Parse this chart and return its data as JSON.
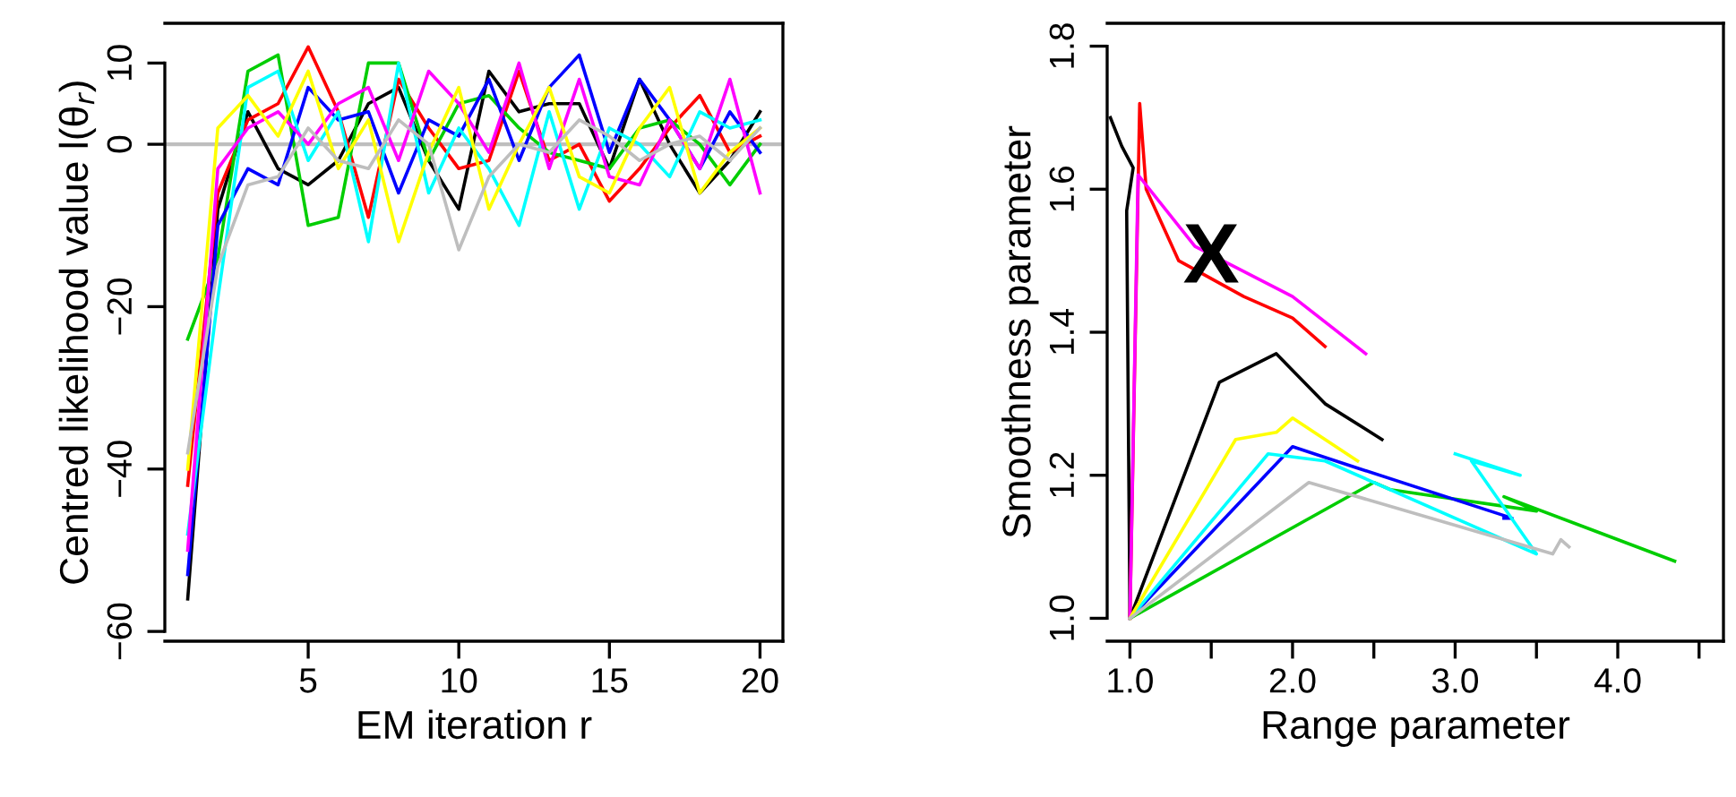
{
  "chart_data": [
    {
      "type": "line",
      "xlabel": "EM iteration r",
      "ylabel": "Centred likelihood value l(θ$_{r}$)",
      "x": [
        1,
        2,
        3,
        4,
        5,
        6,
        7,
        8,
        9,
        10,
        11,
        12,
        13,
        14,
        15,
        16,
        17,
        18,
        19,
        20
      ],
      "xlim": [
        0.24,
        20.76
      ],
      "ylim": [
        -61.2,
        14.9
      ],
      "xticks": [
        5,
        10,
        15,
        20
      ],
      "yticks": [
        {
          "value": -60,
          "label": "−60"
        },
        {
          "value": -40,
          "label": "−40"
        },
        {
          "value": -20,
          "label": "−20"
        },
        0,
        10
      ],
      "grid": false,
      "legend": false,
      "marker": "none",
      "line_style": "solid",
      "ref_lines": [
        {
          "axis": "y",
          "value": 0,
          "color": "#bebebe"
        }
      ],
      "series": [
        {
          "color": "#000000",
          "values": [
            -56,
            -8,
            4,
            -3,
            -5,
            -2,
            5,
            7,
            -2,
            -8,
            9,
            4,
            5,
            5,
            -3,
            8,
            0,
            -6,
            -2,
            4
          ]
        },
        {
          "color": "#ff0000",
          "values": [
            -42,
            -6,
            3,
            5,
            12,
            4,
            -9,
            8,
            2,
            -3,
            -2,
            9,
            -2,
            0,
            -7,
            -3,
            2,
            6,
            -1,
            1
          ]
        },
        {
          "color": "#00cd00",
          "values": [
            -24,
            -14,
            9,
            11,
            -10,
            -9,
            10,
            10,
            -2,
            5,
            6,
            2,
            -1,
            -2,
            -3,
            2,
            3,
            0,
            -5,
            0
          ]
        },
        {
          "color": "#0000ff",
          "values": [
            -53,
            -10,
            -3,
            -5,
            7,
            3,
            4,
            -6,
            3,
            1,
            8,
            -2,
            7,
            11,
            -1,
            8,
            3,
            -3,
            4,
            -1
          ]
        },
        {
          "color": "#00ffff",
          "values": [
            -48,
            -19,
            7,
            9,
            -2,
            4,
            -12,
            10,
            -6,
            2,
            -3,
            -10,
            4,
            -8,
            2,
            0,
            -4,
            4,
            2,
            3
          ]
        },
        {
          "color": "#ff00ff",
          "values": [
            -50,
            -3,
            2,
            4,
            0,
            5,
            7,
            -2,
            9,
            5,
            -1,
            10,
            -3,
            8,
            -4,
            -5,
            3,
            -3,
            8,
            -6
          ]
        },
        {
          "color": "#ffff00",
          "values": [
            -40,
            2,
            6,
            1,
            9,
            -3,
            3,
            -12,
            -1,
            7,
            -8,
            0,
            7,
            -4,
            -6,
            2,
            7,
            -6,
            -1,
            2
          ]
        },
        {
          "color": "#bebebe",
          "values": [
            -38,
            -15,
            -5,
            -4,
            2,
            -2,
            -3,
            3,
            0,
            -13,
            -4,
            0,
            -1,
            3,
            1,
            -2,
            0,
            1,
            -2,
            2
          ]
        }
      ]
    },
    {
      "type": "line",
      "xlabel": "Range parameter",
      "ylabel": "Smoothness parameter",
      "xlim": [
        0.86,
        4.65
      ],
      "ylim": [
        0.968,
        1.832
      ],
      "xticks": [
        {
          "value": 1.0,
          "label": "1.0"
        },
        {
          "value": 1.5,
          "label": null
        },
        {
          "value": 2.0,
          "label": "2.0"
        },
        {
          "value": 2.5,
          "label": null
        },
        {
          "value": 3.0,
          "label": "3.0"
        },
        {
          "value": 3.5,
          "label": null
        },
        {
          "value": 4.0,
          "label": "4.0"
        },
        {
          "value": 4.5,
          "label": null
        }
      ],
      "yticks": [
        {
          "value": 1.0,
          "label": "1.0"
        },
        1.2,
        1.4,
        1.6,
        1.8
      ],
      "grid": false,
      "legend": false,
      "marker": "none",
      "line_style": "solid",
      "annotations": [
        {
          "text": "X",
          "x": 1.5,
          "y": 1.5
        }
      ],
      "series": [
        {
          "color": "#000000",
          "x": [
            0.88,
            0.95,
            1.02,
            0.98,
            1.0,
            1.55,
            1.9,
            2.2,
            2.55
          ],
          "values": [
            1.7,
            1.66,
            1.63,
            1.57,
            1.0,
            1.33,
            1.37,
            1.3,
            1.25
          ]
        },
        {
          "color": "#ff0000",
          "x": [
            1.0,
            1.06,
            1.1,
            1.3,
            1.7,
            2.0,
            2.2
          ],
          "values": [
            1.0,
            1.72,
            1.6,
            1.5,
            1.45,
            1.42,
            1.38
          ]
        },
        {
          "color": "#00cd00",
          "x": [
            1.0,
            2.5,
            2.6,
            3.5,
            3.3,
            4.35
          ],
          "values": [
            1.0,
            1.19,
            1.18,
            1.15,
            1.17,
            1.08
          ]
        },
        {
          "color": "#0000ff",
          "x": [
            1.0,
            2.0,
            2.4,
            3.35,
            3.3
          ],
          "values": [
            1.0,
            1.24,
            1.21,
            1.14,
            1.14
          ]
        },
        {
          "color": "#00ffff",
          "x": [
            1.0,
            1.85,
            2.2,
            3.5,
            3.1,
            3.4,
            3.0
          ],
          "values": [
            1.0,
            1.23,
            1.22,
            1.09,
            1.22,
            1.2,
            1.23
          ]
        },
        {
          "color": "#ff00ff",
          "x": [
            1.0,
            1.05,
            1.4,
            2.0,
            2.45
          ],
          "values": [
            1.0,
            1.62,
            1.52,
            1.45,
            1.37
          ]
        },
        {
          "color": "#ffff00",
          "x": [
            1.0,
            1.65,
            1.9,
            2.0,
            2.4
          ],
          "values": [
            1.0,
            1.25,
            1.26,
            1.28,
            1.22
          ]
        },
        {
          "color": "#bebebe",
          "x": [
            1.0,
            2.1,
            3.6,
            3.65,
            3.7
          ],
          "values": [
            1.0,
            1.19,
            1.09,
            1.11,
            1.1
          ]
        }
      ]
    }
  ]
}
